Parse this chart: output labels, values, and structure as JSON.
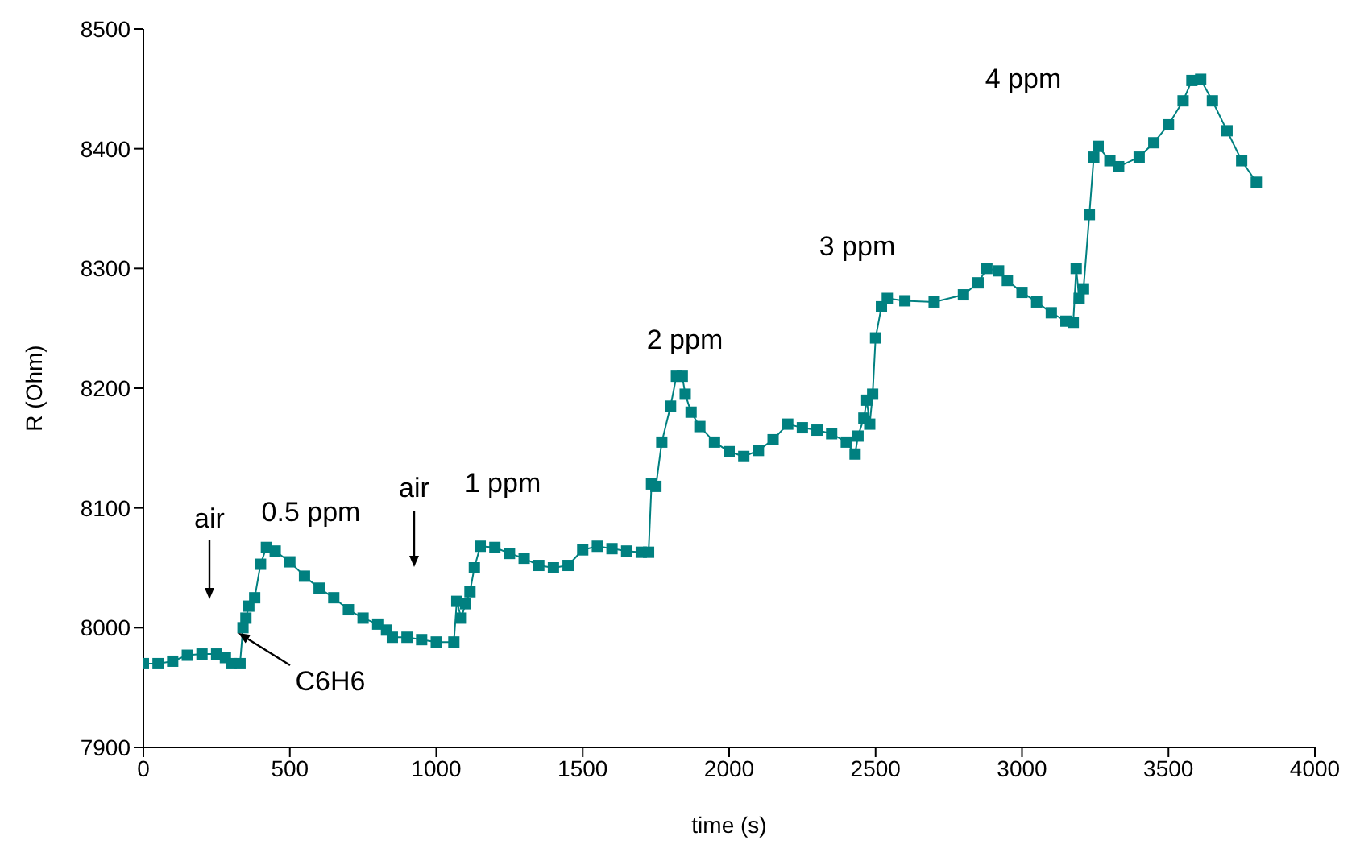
{
  "chart_data": {
    "type": "line",
    "xlabel": "time (s)",
    "ylabel": "R (Ohm)",
    "xlim": [
      0,
      4000
    ],
    "xticks": [
      0,
      500,
      1000,
      1500,
      2000,
      2500,
      3000,
      3500,
      4000
    ],
    "ylim": [
      7900,
      8500
    ],
    "yticks": [
      7900,
      8000,
      8100,
      8200,
      8300,
      8400,
      8500
    ],
    "grid": false,
    "marker": "square",
    "line_style": "solid",
    "series": [
      {
        "color": "#008080",
        "x": [
          0,
          50,
          100,
          150,
          200,
          250,
          280,
          300,
          330,
          340,
          350,
          360,
          380,
          400,
          420,
          450,
          500,
          550,
          600,
          650,
          700,
          750,
          800,
          830,
          850,
          900,
          950,
          1000,
          1060,
          1070,
          1085,
          1100,
          1115,
          1130,
          1150,
          1200,
          1250,
          1300,
          1350,
          1400,
          1450,
          1500,
          1550,
          1600,
          1650,
          1700,
          1725,
          1735,
          1750,
          1770,
          1800,
          1820,
          1840,
          1850,
          1870,
          1900,
          1950,
          2000,
          2050,
          2100,
          2150,
          2200,
          2250,
          2300,
          2350,
          2400,
          2430,
          2440,
          2460,
          2470,
          2480,
          2490,
          2500,
          2520,
          2540,
          2600,
          2700,
          2800,
          2850,
          2880,
          2920,
          2950,
          3000,
          3050,
          3100,
          3150,
          3175,
          3185,
          3195,
          3210,
          3230,
          3245,
          3260,
          3300,
          3330,
          3400,
          3450,
          3500,
          3550,
          3580,
          3610,
          3650,
          3700,
          3750,
          3800
        ],
        "values": [
          7970,
          7970,
          7972,
          7977,
          7978,
          7978,
          7975,
          7970,
          7970,
          8000,
          8008,
          8018,
          8025,
          8053,
          8067,
          8064,
          8055,
          8043,
          8033,
          8025,
          8015,
          8008,
          8003,
          7998,
          7992,
          7992,
          7990,
          7988,
          7988,
          8022,
          8008,
          8020,
          8030,
          8050,
          8068,
          8067,
          8062,
          8058,
          8052,
          8050,
          8052,
          8065,
          8068,
          8066,
          8064,
          8063,
          8063,
          8120,
          8118,
          8155,
          8185,
          8210,
          8210,
          8195,
          8180,
          8168,
          8155,
          8147,
          8143,
          8148,
          8157,
          8170,
          8167,
          8165,
          8162,
          8155,
          8145,
          8160,
          8175,
          8190,
          8170,
          8195,
          8242,
          8268,
          8275,
          8273,
          8272,
          8278,
          8288,
          8300,
          8298,
          8290,
          8280,
          8272,
          8263,
          8256,
          8255,
          8300,
          8275,
          8283,
          8345,
          8393,
          8402,
          8390,
          8385,
          8393,
          8405,
          8420,
          8440,
          8457,
          8458,
          8440,
          8415,
          8390,
          8372
        ]
      }
    ],
    "annotations": [
      "air",
      "0.5 ppm",
      "C6H6",
      "air",
      "1 ppm",
      "2 ppm",
      "3 ppm",
      "4 ppm"
    ]
  }
}
